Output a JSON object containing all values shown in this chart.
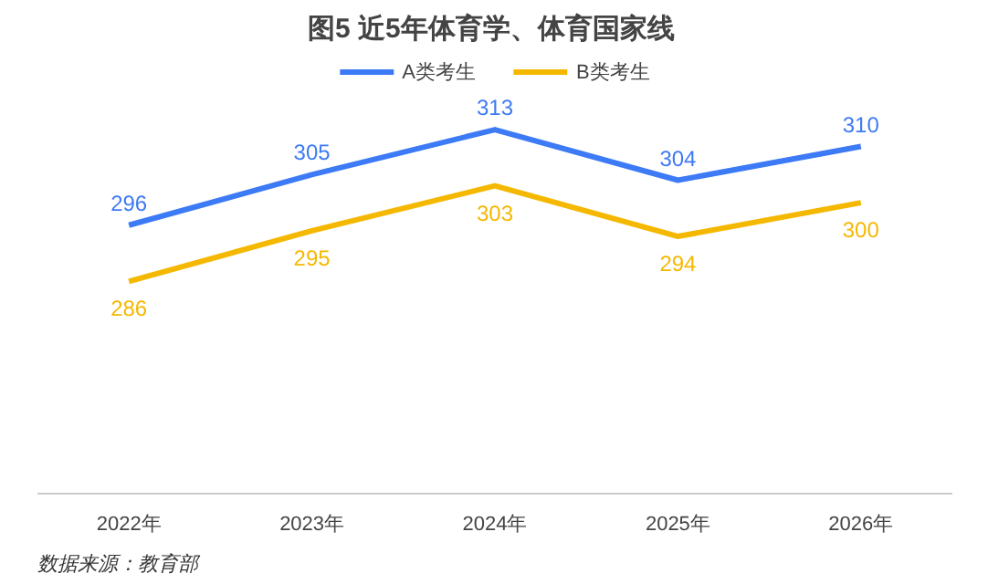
{
  "chart_data": {
    "type": "line",
    "title": "图5  近5年体育学、体育国家线",
    "categories": [
      "2022年",
      "2023年",
      "2024年",
      "2025年",
      "2026年"
    ],
    "series": [
      {
        "name": "A类考生",
        "color": "#3d7af5",
        "values": [
          296,
          305,
          313,
          304,
          310
        ]
      },
      {
        "name": "B类考生",
        "color": "#f5b800",
        "values": [
          286,
          295,
          303,
          294,
          300
        ]
      }
    ],
    "tick_labels": "x",
    "data_labels": true,
    "legend": "top",
    "grid": false,
    "marker": "none",
    "line_style": "solid",
    "annotations": [
      "数据来源：教育部"
    ]
  }
}
